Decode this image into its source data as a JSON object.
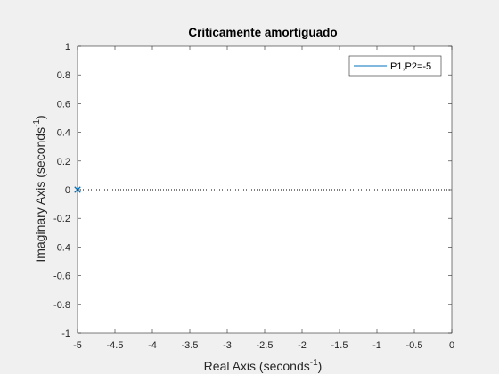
{
  "chart_data": {
    "type": "scatter",
    "title": "Criticamente amortiguado",
    "xlabel": {
      "base": "Real Axis (seconds",
      "sup": "-1",
      "close": ")"
    },
    "ylabel": {
      "base": "Imaginary Axis (seconds",
      "sup": "-1",
      "close": ")"
    },
    "xlim": [
      -5,
      0
    ],
    "ylim": [
      -1,
      1
    ],
    "xticks": [
      -5,
      -4.5,
      -4,
      -3.5,
      -3,
      -2.5,
      -2,
      -1.5,
      -1,
      -0.5,
      0
    ],
    "xtick_labels": [
      "-5",
      "-4.5",
      "-4",
      "-3.5",
      "-3",
      "-2.5",
      "-2",
      "-1.5",
      "-1",
      "-0.5",
      "0"
    ],
    "yticks": [
      -1,
      -0.8,
      -0.6,
      -0.4,
      -0.2,
      0,
      0.2,
      0.4,
      0.6,
      0.8,
      1
    ],
    "ytick_labels": [
      "-1",
      "-0.8",
      "-0.6",
      "-0.4",
      "-0.2",
      "0",
      "0.2",
      "0.4",
      "0.6",
      "0.8",
      "1"
    ],
    "grid": false,
    "legend_position": "top-right",
    "reference_line": {
      "y": 0,
      "style": "dotted",
      "color": "#000000"
    },
    "series": [
      {
        "name": "P1,P2=-5",
        "marker": "x",
        "color": "#0072bd",
        "points": [
          {
            "x": -5,
            "y": 0
          },
          {
            "x": -5,
            "y": 0
          }
        ]
      }
    ]
  }
}
